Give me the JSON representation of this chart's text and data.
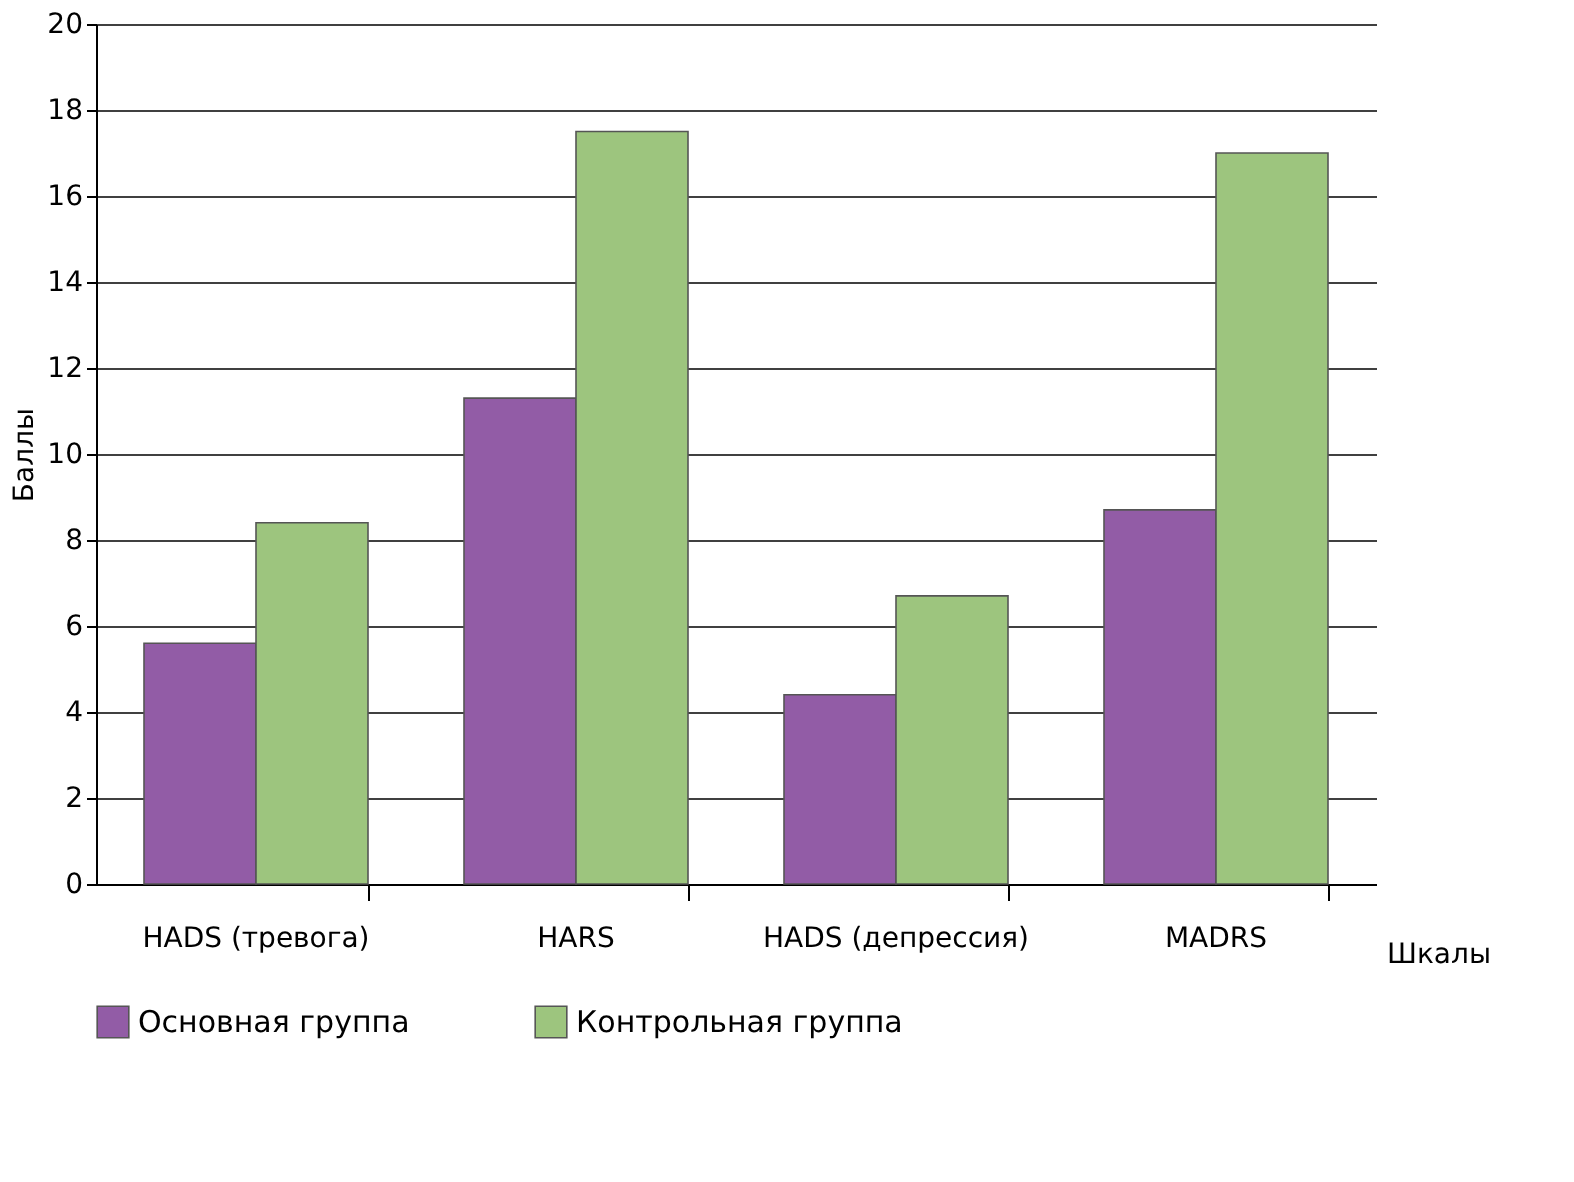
{
  "chart_data": {
    "type": "bar",
    "ylabel": "Баллы",
    "xlabel": "Шкалы",
    "categories": [
      "HADS (тревога)",
      "HARS",
      "HADS (депрессия)",
      "MADRS"
    ],
    "series": [
      {
        "name": "Основная группа",
        "color": "#925ca6",
        "values": [
          5.6,
          11.3,
          4.4,
          8.7
        ]
      },
      {
        "name": "Контрольная группа",
        "color": "#9dc57e",
        "values": [
          8.4,
          17.5,
          6.7,
          17.0
        ]
      }
    ],
    "ylim": [
      0,
      20
    ],
    "yticks": [
      0,
      2,
      4,
      6,
      8,
      10,
      12,
      14,
      16,
      18,
      20
    ],
    "grid": "y",
    "legend": "bottom"
  }
}
